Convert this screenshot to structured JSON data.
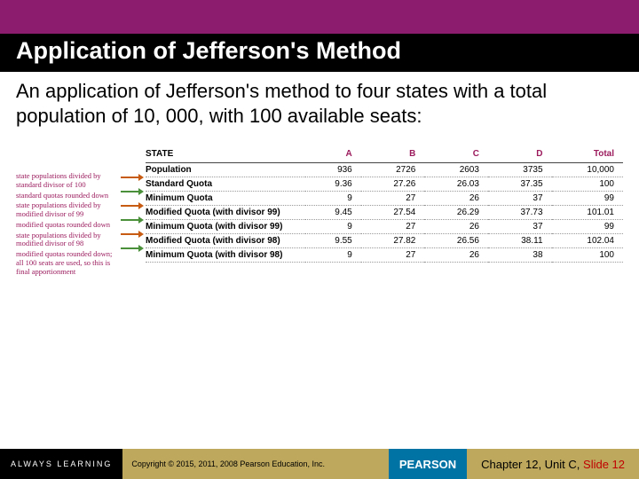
{
  "header": {
    "band_color": "#8c1d6e",
    "title_bg": "#000000",
    "title_color": "#ffffff",
    "title": "Application of Jefferson's Method"
  },
  "body": {
    "text": "An application of Jefferson's method to four states with a total population of 10, 000, with 100 available seats:"
  },
  "annotations": {
    "color": "#9b1b5d",
    "items": [
      "state populations divided by standard divisor of 100",
      "standard quotas rounded down",
      "state populations divided by modified divisor of 99",
      "modified quotas rounded down",
      "state populations divided by modified divisor of 98",
      "modified quotas rounded down; all 100 seats are used, so this is final apportionment"
    ]
  },
  "arrows": {
    "color_a": "#c75b12",
    "color_b": "#4a8f3a"
  },
  "table": {
    "header_color": "#9b1b5d",
    "columns": [
      "STATE",
      "A",
      "B",
      "C",
      "D",
      "Total"
    ],
    "rows": [
      {
        "label": "Population",
        "cells": [
          "936",
          "2726",
          "2603",
          "3735",
          "10,000"
        ]
      },
      {
        "label": "Standard Quota",
        "cells": [
          "9.36",
          "27.26",
          "26.03",
          "37.35",
          "100"
        ]
      },
      {
        "label": "Minimum Quota",
        "cells": [
          "9",
          "27",
          "26",
          "37",
          "99"
        ]
      },
      {
        "label": "Modified Quota (with divisor 99)",
        "cells": [
          "9.45",
          "27.54",
          "26.29",
          "37.73",
          "101.01"
        ]
      },
      {
        "label": "Minimum Quota (with divisor 99)",
        "cells": [
          "9",
          "27",
          "26",
          "37",
          "99"
        ]
      },
      {
        "label": "Modified Quota (with divisor 98)",
        "cells": [
          "9.55",
          "27.82",
          "26.56",
          "38.11",
          "102.04"
        ]
      },
      {
        "label": "Minimum Quota (with divisor 98)",
        "cells": [
          "9",
          "27",
          "26",
          "38",
          "100"
        ]
      }
    ]
  },
  "footer": {
    "bar_color": "#bda85d",
    "always_label": "ALWAYS LEARNING",
    "copyright": "Copyright © 2015, 2011, 2008 Pearson Education, Inc.",
    "pearson_label": "PEARSON",
    "chapter_prefix": "Chapter 12, Unit C,",
    "slide_label": " Slide 12"
  }
}
